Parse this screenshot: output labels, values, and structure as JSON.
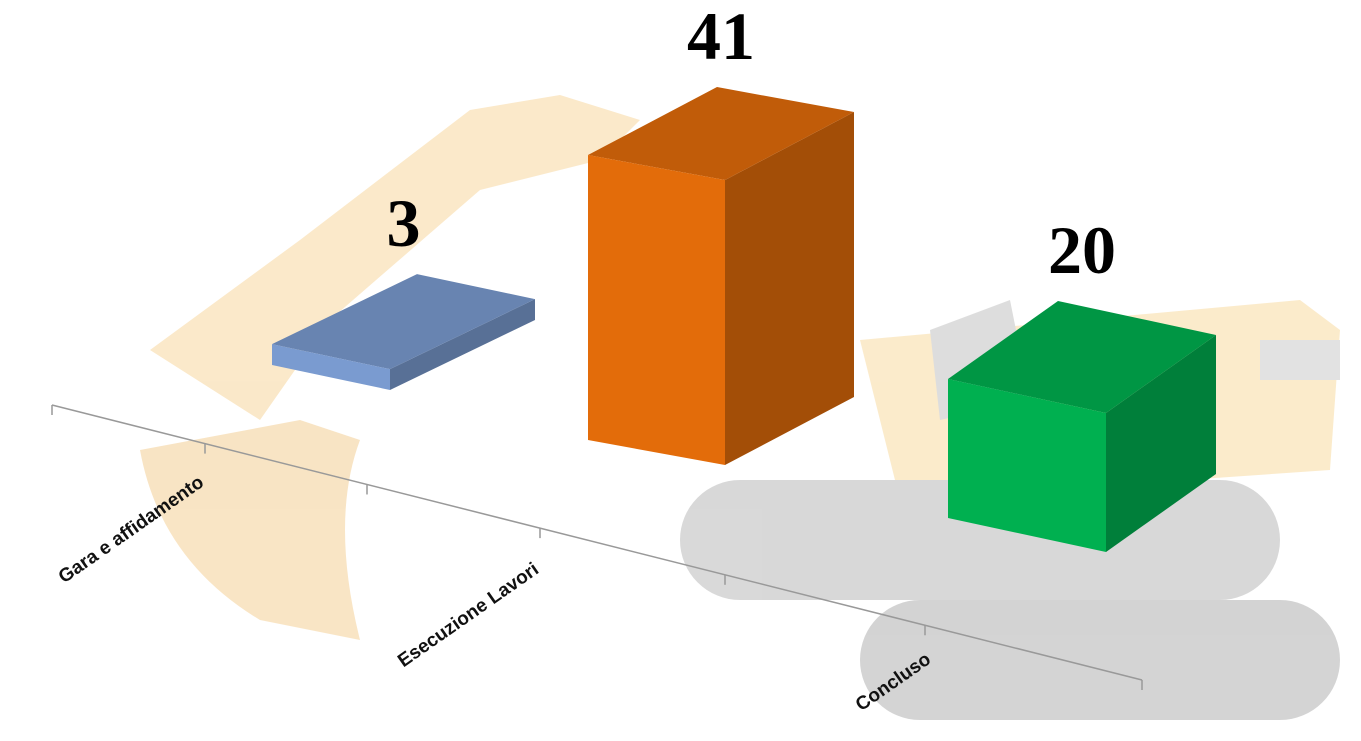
{
  "chart_data": {
    "type": "bar3d",
    "categories": [
      "Gara e affidamento",
      "Esecuzione Lavori",
      "Concluso"
    ],
    "values": [
      3,
      41,
      20
    ],
    "colors": [
      "#7a9bd0",
      "#e36c0a",
      "#00b050"
    ]
  }
}
